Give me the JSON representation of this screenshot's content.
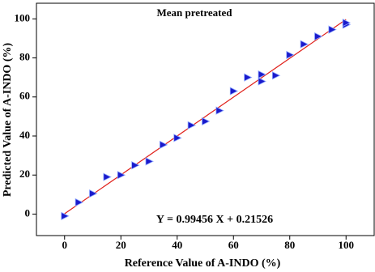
{
  "chart_data": {
    "type": "scatter",
    "title": "Mean pretreated",
    "x_label": "Reference Value of  A-INDO (%)",
    "y_label": "Predicted Value of A-INDO (%)",
    "annotation": "Y = 0.99456 X + 0.21526",
    "xlim": [
      -10,
      110
    ],
    "ylim": [
      -11,
      108
    ],
    "xticks": [
      0,
      20,
      40,
      60,
      80,
      100
    ],
    "yticks": [
      0,
      20,
      40,
      60,
      80,
      100
    ],
    "series": [
      {
        "color": "#1a1acc",
        "x": [
          0,
          5,
          10,
          15,
          20,
          25,
          30,
          35,
          40,
          45,
          50,
          55,
          60,
          65,
          70,
          70,
          75,
          80,
          85,
          90,
          95,
          100,
          100
        ],
        "values": [
          -1,
          6,
          10.5,
          19,
          20,
          25,
          27,
          35.5,
          39,
          45.5,
          47.5,
          53,
          63,
          70,
          68,
          71.5,
          71,
          81.5,
          87,
          91,
          94.5,
          97,
          98
        ]
      }
    ],
    "fit_line": {
      "color": "#e0201a",
      "x": [
        0,
        100
      ],
      "values": [
        0.2,
        99.7
      ]
    }
  }
}
